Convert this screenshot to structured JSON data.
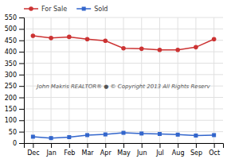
{
  "chart_data": {
    "type": "line",
    "categories": [
      "Dec",
      "Jan",
      "Feb",
      "Mar",
      "Apr",
      "May",
      "Jun",
      "Jul",
      "Aug",
      "Sep",
      "Oct"
    ],
    "series": [
      {
        "name": "For Sale",
        "color": "#cc3333",
        "marker": "circle",
        "line_style": "solid",
        "values": [
          470,
          460,
          465,
          455,
          448,
          415,
          413,
          408,
          408,
          420,
          455
        ]
      },
      {
        "name": "Sold",
        "color": "#3366cc",
        "marker": "square",
        "line_style": "solid",
        "values": [
          28,
          22,
          26,
          35,
          38,
          45,
          42,
          40,
          37,
          33,
          35
        ]
      }
    ],
    "ylim": [
      0,
      550
    ],
    "yticks": [
      0,
      50,
      100,
      150,
      200,
      250,
      300,
      350,
      400,
      450,
      500,
      550
    ],
    "grid": true,
    "legend": "upper left",
    "annotations": [
      "John Makris REALTOR®  ●  © Copyright 2013 All Rights Reserv"
    ]
  }
}
